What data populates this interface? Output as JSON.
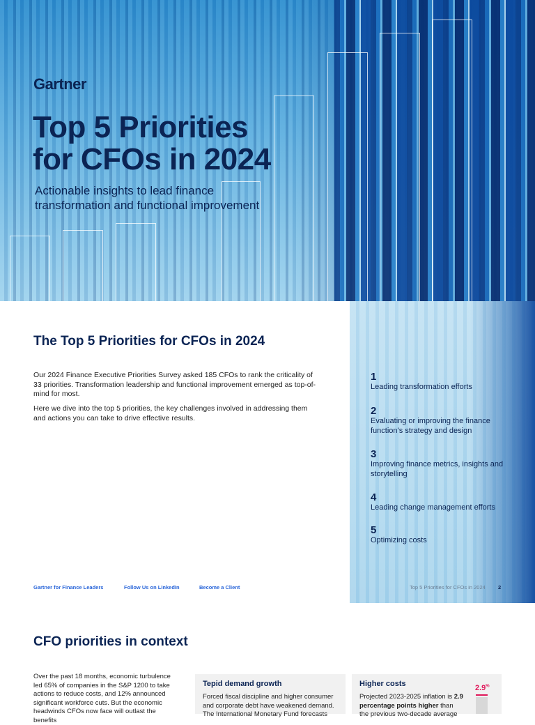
{
  "cover": {
    "logo": "Gartner",
    "title_line1": "Top 5 Priorities",
    "title_line2": "for CFOs in 2024",
    "subtitle_line1": "Actionable insights to lead finance",
    "subtitle_line2": "transformation and functional improvement"
  },
  "page2": {
    "heading": "The Top 5 Priorities for CFOs in 2024",
    "para1": "Our 2024 Finance Executive Priorities Survey asked 185 CFOs to rank the criticality of 33 priorities. Transformation leadership and functional improvement emerged as top-of-mind for most.",
    "para2": "Here we dive into the top 5 priorities, the key challenges involved in addressing them and actions you can take to drive effective results.",
    "priorities": [
      {
        "num": "1",
        "label": "Leading transformation efforts"
      },
      {
        "num": "2",
        "label": "Evaluating or improving the finance function’s strategy and design"
      },
      {
        "num": "3",
        "label": "Improving finance metrics, insights and storytelling"
      },
      {
        "num": "4",
        "label": "Leading change management efforts"
      },
      {
        "num": "5",
        "label": "Optimizing costs"
      }
    ],
    "links": [
      "Gartner for Finance Leaders",
      "Follow Us on LinkedIn",
      "Become a Client"
    ],
    "footer_title": "Top 5 Priorities for CFOs in 2024",
    "page_number": "2"
  },
  "page3": {
    "heading": "CFO priorities in context",
    "intro": "Over the past 18 months, economic turbulence led 65% of companies in the S&P 1200 to take actions to reduce costs, and 12% announced significant workforce cuts. But the economic headwinds CFOs now face will outlast the benefits",
    "cards": [
      {
        "title": "Tepid demand growth",
        "text": "Forced fiscal discipline and higher consumer and corporate debt have weakened demand. The International Monetary Fund forecasts"
      },
      {
        "title": "Higher costs",
        "text_pre": "Projected 2023-2025 inflation is ",
        "text_bold": "2.9 percentage points higher",
        "text_post": " than the previous two-decade average",
        "stat": "2.9",
        "stat_unit": "%"
      }
    ]
  },
  "colors": {
    "navy": "#0b2454",
    "link": "#2a66d9",
    "accent": "#e0185a"
  }
}
